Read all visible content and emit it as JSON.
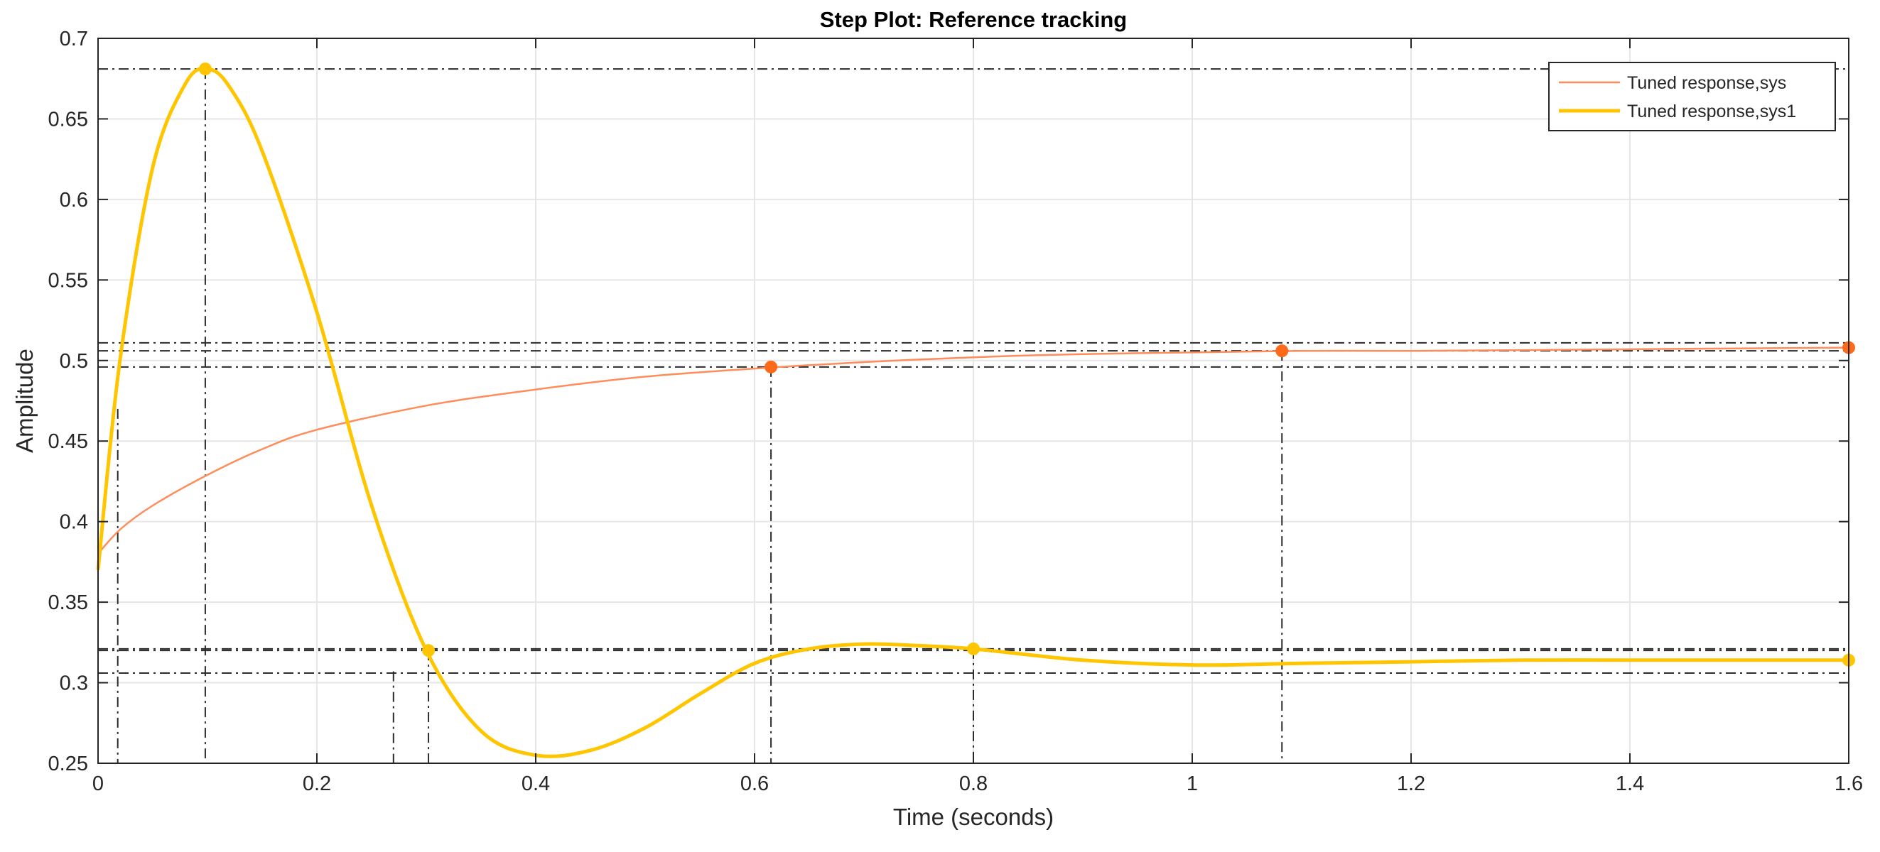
{
  "chart_data": {
    "type": "line",
    "title": "Step Plot: Reference tracking",
    "xlabel": "Time (seconds)",
    "ylabel": "Amplitude",
    "xlim": [
      0,
      1.6
    ],
    "ylim": [
      0.25,
      0.7
    ],
    "xticks": [
      0,
      0.2,
      0.4,
      0.6,
      0.8,
      1,
      1.2,
      1.4,
      1.6
    ],
    "xtick_labels": [
      "0",
      "0.2",
      "0.4",
      "0.6",
      "0.8",
      "1",
      "1.2",
      "1.4",
      "1.6"
    ],
    "yticks": [
      0.25,
      0.3,
      0.35,
      0.4,
      0.45,
      0.5,
      0.55,
      0.6,
      0.65,
      0.7
    ],
    "ytick_labels": [
      "0.25",
      "0.3",
      "0.35",
      "0.4",
      "0.45",
      "0.5",
      "0.55",
      "0.6",
      "0.65",
      "0.7"
    ],
    "grid": true,
    "legend_position": "top-right",
    "series": [
      {
        "name": "Tuned response,sys",
        "color": "#ff8c5a",
        "style": "thin",
        "x": [
          0,
          0.02,
          0.05,
          0.1,
          0.15,
          0.2,
          0.3,
          0.4,
          0.5,
          0.6,
          0.7,
          0.8,
          0.9,
          1.0,
          1.1,
          1.2,
          1.4,
          1.6
        ],
        "y": [
          0.38,
          0.395,
          0.41,
          0.429,
          0.445,
          0.457,
          0.472,
          0.482,
          0.49,
          0.495,
          0.499,
          0.502,
          0.504,
          0.505,
          0.506,
          0.506,
          0.507,
          0.508
        ],
        "markers": [
          {
            "x": 0.615,
            "y": 0.496
          },
          {
            "x": 1.082,
            "y": 0.506
          },
          {
            "x": 1.6,
            "y": 0.508
          }
        ]
      },
      {
        "name": "Tuned response,sys1",
        "color": "#ffc600",
        "style": "thick",
        "x": [
          0,
          0.02,
          0.05,
          0.08,
          0.1,
          0.12,
          0.15,
          0.2,
          0.25,
          0.3,
          0.35,
          0.4,
          0.45,
          0.5,
          0.55,
          0.6,
          0.65,
          0.7,
          0.75,
          0.8,
          0.9,
          1.0,
          1.1,
          1.2,
          1.3,
          1.4,
          1.5,
          1.6
        ],
        "y": [
          0.37,
          0.5,
          0.62,
          0.672,
          0.681,
          0.67,
          0.63,
          0.53,
          0.41,
          0.32,
          0.27,
          0.255,
          0.258,
          0.272,
          0.293,
          0.312,
          0.321,
          0.324,
          0.323,
          0.321,
          0.314,
          0.311,
          0.312,
          0.313,
          0.314,
          0.314,
          0.314,
          0.314
        ],
        "markers": [
          {
            "x": 0.098,
            "y": 0.681
          },
          {
            "x": 0.302,
            "y": 0.32
          },
          {
            "x": 0.8,
            "y": 0.321
          },
          {
            "x": 1.6,
            "y": 0.314
          }
        ]
      }
    ],
    "characteristic_lines": {
      "horizontal": [
        0.681,
        0.511,
        0.506,
        0.496,
        0.321,
        0.32,
        0.306
      ],
      "vertical": [
        {
          "x": 0.018,
          "y_top": 0.47
        },
        {
          "x": 0.098,
          "y_top": 0.681
        },
        {
          "x": 0.27,
          "y_top": 0.307
        },
        {
          "x": 0.302,
          "y_top": 0.32
        },
        {
          "x": 0.615,
          "y_top": 0.496
        },
        {
          "x": 0.8,
          "y_top": 0.321
        },
        {
          "x": 1.082,
          "y_top": 0.506
        }
      ]
    }
  }
}
